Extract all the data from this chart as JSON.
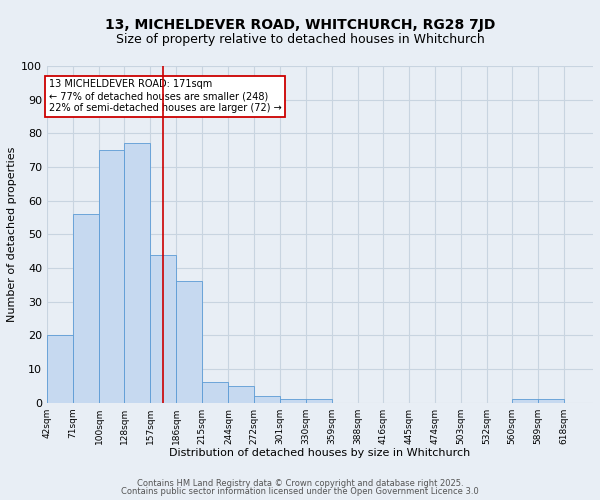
{
  "title1": "13, MICHELDEVER ROAD, WHITCHURCH, RG28 7JD",
  "title2": "Size of property relative to detached houses in Whitchurch",
  "xlabel": "Distribution of detached houses by size in Whitchurch",
  "ylabel": "Number of detached properties",
  "bin_edges": [
    42,
    71,
    100,
    128,
    157,
    186,
    215,
    244,
    272,
    301,
    330,
    359,
    388,
    416,
    445,
    474,
    503,
    532,
    560,
    589,
    618
  ],
  "bar_heights": [
    20,
    56,
    75,
    77,
    44,
    36,
    6,
    5,
    2,
    1,
    1,
    0,
    0,
    0,
    0,
    0,
    0,
    0,
    1,
    1
  ],
  "x_tick_labels": [
    "42sqm",
    "71sqm",
    "100sqm",
    "128sqm",
    "157sqm",
    "186sqm",
    "215sqm",
    "244sqm",
    "272sqm",
    "301sqm",
    "330sqm",
    "359sqm",
    "388sqm",
    "416sqm",
    "445sqm",
    "474sqm",
    "503sqm",
    "532sqm",
    "560sqm",
    "589sqm",
    "618sqm"
  ],
  "bar_color": "#c6d9f0",
  "bar_edge_color": "#5b9bd5",
  "property_line_x": 171,
  "annotation_text": "13 MICHELDEVER ROAD: 171sqm\n← 77% of detached houses are smaller (248)\n22% of semi-detached houses are larger (72) →",
  "annotation_box_color": "#ffffff",
  "annotation_box_edge": "#cc0000",
  "vline_color": "#cc0000",
  "ylim": [
    0,
    100
  ],
  "footer1": "Contains HM Land Registry data © Crown copyright and database right 2025.",
  "footer2": "Contains public sector information licensed under the Open Government Licence 3.0",
  "bg_color": "#e8eef5",
  "grid_color": "#c8d4e0",
  "title_fontsize": 10,
  "subtitle_fontsize": 9
}
